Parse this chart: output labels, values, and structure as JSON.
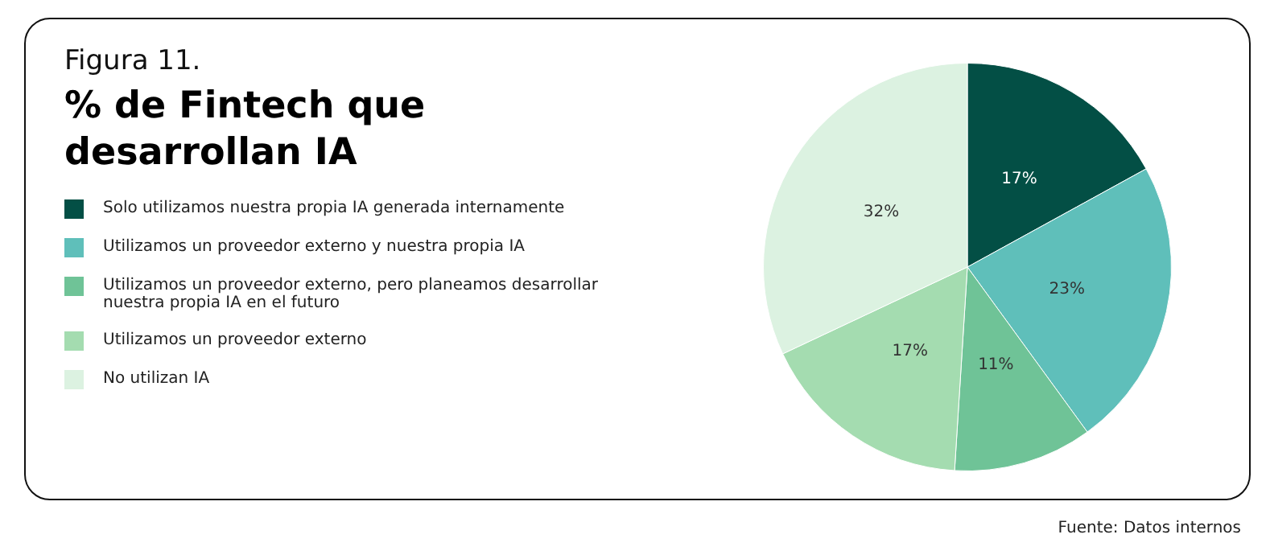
{
  "chart_data": {
    "type": "pie",
    "subtitle": "Figura 11.",
    "title": "% de Fintech que desarrollan IA",
    "categories": [
      "Solo utilizamos nuestra propia IA generada internamente",
      "Utilizamos un proveedor externo y nuestra propia IA",
      "Utilizamos un proveedor externo, pero planeamos desarrollar nuestra propia IA en el futuro",
      "Utilizamos un proveedor externo",
      "No utilizan IA"
    ],
    "values": [
      17,
      23,
      11,
      17,
      32
    ],
    "colors": [
      "#034f45",
      "#5fbfba",
      "#6fc397",
      "#a4dcb0",
      "#dcf2e1"
    ],
    "value_labels": [
      "17%",
      "23%",
      "11%",
      "17%",
      "32%"
    ],
    "legend": "left",
    "annotations": [
      "Fuente: Datos internos"
    ]
  }
}
